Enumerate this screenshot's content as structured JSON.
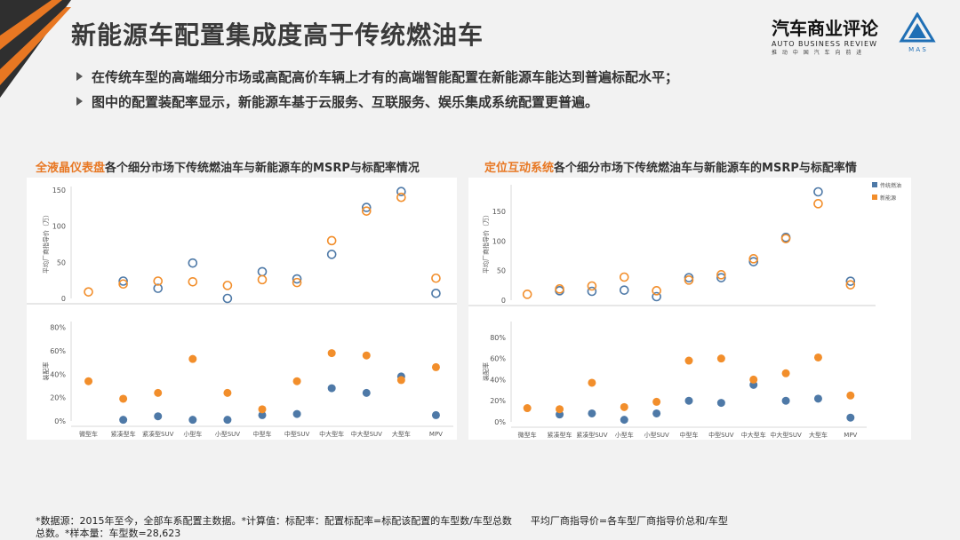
{
  "slide": {
    "title": "新能源车配置集成度高于传统燃油车",
    "bullets": [
      "在传统车型的高端细分市场或高配高价车辆上才有的高端智能配置在新能源车能达到普遍标配水平；",
      "图中的配置装配率显示，新能源车基于云服务、互联服务、娱乐集成系统配置更普遍。"
    ],
    "logo": {
      "cn": "汽车商业评论",
      "en": "AUTO BUSINESS REVIEW",
      "sub": "推 动 中 国 汽 车 向 前 进",
      "mas": "M A S"
    },
    "footer": {
      "line1a": "*数据源：2015年至今，全部车系配置主数据。*计算值：标配率：配置标配率=标配该配置的车型数/车型总数",
      "line1b": "平均厂商指导价=各车型厂商指导价总和/车型",
      "line2": "总数。*样本量：车型数=28,623"
    },
    "colors": {
      "fuel": "#4e79a7",
      "nev": "#f28e2b",
      "accent": "#e87722",
      "title": "#3a3a3a"
    }
  },
  "chart_data": [
    {
      "type": "scatter",
      "title_highlight": "全液晶仪表盘",
      "title_rest": "各个细分市场下传统燃油车与新能源车的MSRP与标配率情况",
      "categories": [
        "微型车",
        "紧凑型车",
        "紧凑型SUV",
        "小型车",
        "小型SUV",
        "中型车",
        "中型SUV",
        "中大型车",
        "中大型SUV",
        "大型车",
        "MPV"
      ],
      "upper": {
        "ylabel": "平均厂商指导价（万）",
        "ylim": [
          0,
          155
        ],
        "ticks": [
          0,
          50,
          100,
          150
        ],
        "series": [
          {
            "key": "fuel",
            "values": [
              null,
              24,
              14,
              49,
              0,
              37,
              27,
              61,
              126,
              148,
              7
            ]
          },
          {
            "key": "nev",
            "values": [
              9,
              20,
              24,
              23,
              18,
              26,
              22,
              80,
              121,
              140,
              28
            ]
          }
        ]
      },
      "lower": {
        "ylabel": "装配率",
        "ylim": [
          0,
          0.85
        ],
        "ticks": [
          0,
          0.2,
          0.4,
          0.6,
          0.8
        ],
        "tick_labels": [
          "0%",
          "20%",
          "40%",
          "60%",
          "80%"
        ],
        "series": [
          {
            "key": "fuel",
            "values": [
              null,
              0.01,
              0.04,
              0.01,
              0.01,
              0.05,
              0.06,
              0.28,
              0.24,
              0.38,
              0.05
            ]
          },
          {
            "key": "nev",
            "values": [
              0.34,
              0.19,
              0.24,
              0.53,
              0.24,
              0.1,
              0.34,
              0.58,
              0.56,
              0.35,
              0.46
            ]
          }
        ]
      }
    },
    {
      "type": "scatter",
      "title_highlight": "定位互动系统",
      "title_rest": "各个细分市场下传统燃油车与新能源车的MSRP与标配率情",
      "categories": [
        "微型车",
        "紧凑型车",
        "紧凑型SUV",
        "小型车",
        "小型SUV",
        "中型车",
        "中型SUV",
        "中大型车",
        "中大型SUV",
        "大型车",
        "MPV"
      ],
      "legend": [
        {
          "key": "fuel",
          "label": "传统燃油"
        },
        {
          "key": "nev",
          "label": "新能源"
        }
      ],
      "upper": {
        "ylabel": "平均厂商指导价（万）",
        "ylim": [
          0,
          195
        ],
        "ticks": [
          0,
          50,
          100,
          150
        ],
        "series": [
          {
            "key": "fuel",
            "values": [
              null,
              16,
              15,
              17,
              6,
              38,
              38,
              65,
              106,
              183,
              32
            ]
          },
          {
            "key": "nev",
            "values": [
              10,
              19,
              24,
              39,
              16,
              34,
              43,
              70,
              104,
              163,
              26
            ]
          }
        ]
      },
      "lower": {
        "ylabel": "装配率",
        "ylim": [
          0,
          0.95
        ],
        "ticks": [
          0,
          0.2,
          0.4,
          0.6,
          0.8
        ],
        "tick_labels": [
          "0%",
          "20%",
          "40%",
          "60%",
          "80%"
        ],
        "series": [
          {
            "key": "fuel",
            "values": [
              null,
              0.07,
              0.08,
              0.02,
              0.08,
              0.2,
              0.18,
              0.35,
              0.2,
              0.22,
              0.04
            ]
          },
          {
            "key": "nev",
            "values": [
              0.13,
              0.12,
              0.37,
              0.14,
              0.19,
              0.58,
              0.6,
              0.4,
              0.46,
              0.61,
              0.25
            ]
          }
        ]
      }
    }
  ]
}
